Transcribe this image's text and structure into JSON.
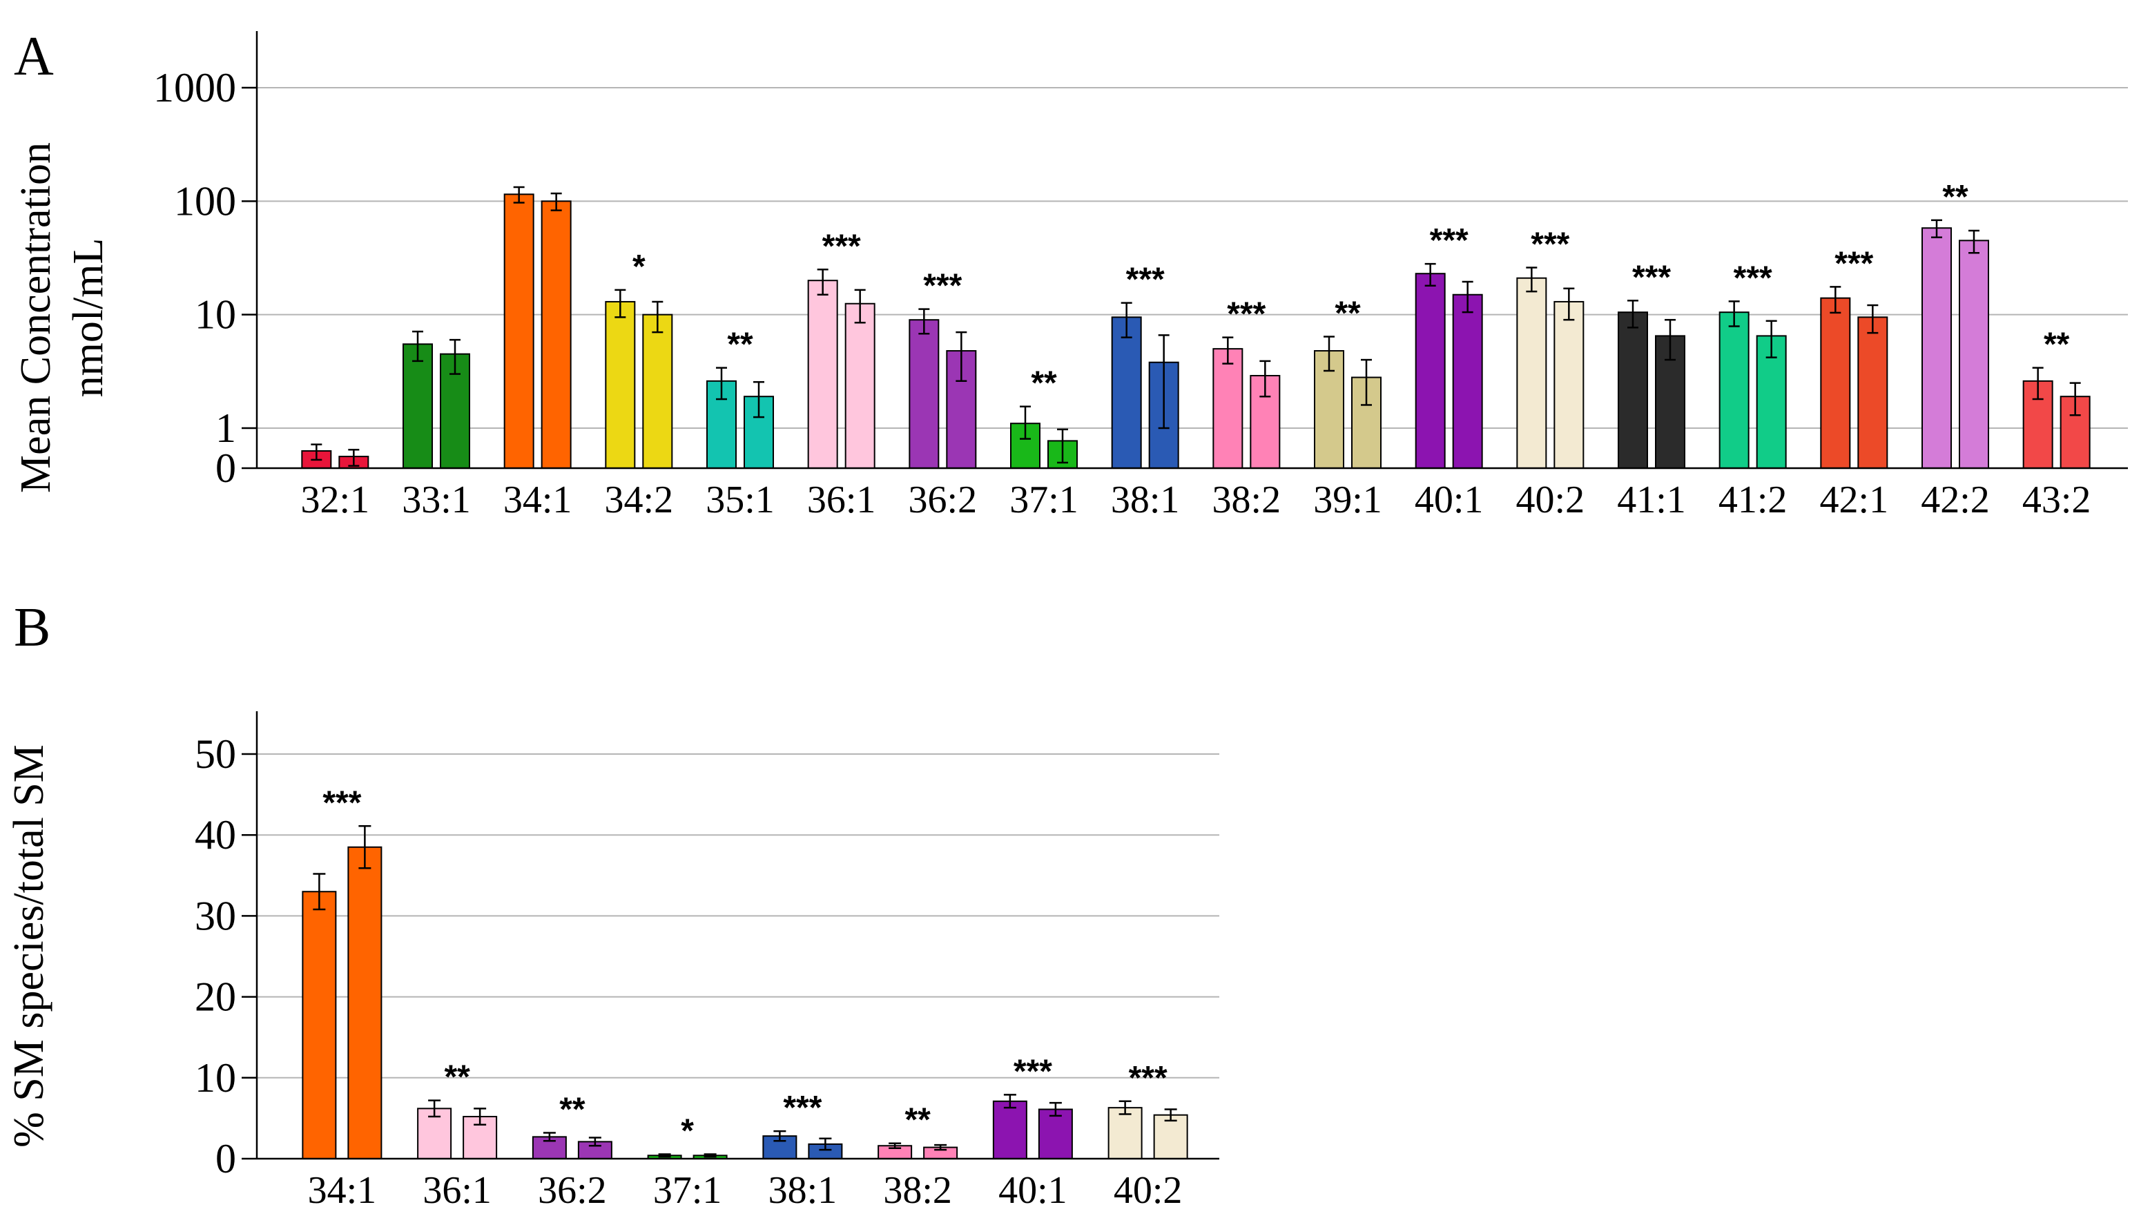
{
  "chart_data": [
    {
      "panel": "A",
      "type": "bar",
      "ylabel": "Mean Concentration",
      "ylabel2": "nmol/mL",
      "yscale": "log",
      "yticks": [
        "0",
        "1",
        "10",
        "100",
        "1000"
      ],
      "grid": true,
      "categories": [
        "32:1",
        "33:1",
        "34:1",
        "34:2",
        "35:1",
        "36:1",
        "36:2",
        "37:1",
        "38:1",
        "38:2",
        "39:1",
        "40:1",
        "40:2",
        "41:1",
        "41:2",
        "42:1",
        "42:2",
        "43:2"
      ],
      "series": [
        {
          "values": [
            0.4,
            5.5,
            115,
            13,
            2.6,
            20,
            9,
            1.1,
            9.5,
            5,
            4.8,
            23,
            21,
            10.5,
            10.5,
            14,
            58,
            2.6
          ],
          "errors": [
            0.12,
            1.6,
            18,
            3.5,
            0.8,
            5,
            2.2,
            0.45,
            3.2,
            1.3,
            1.6,
            5,
            5,
            2.8,
            2.6,
            3.6,
            10,
            0.8
          ]
        },
        {
          "values": [
            0.32,
            4.5,
            100,
            10,
            1.9,
            12.5,
            4.8,
            0.6,
            3.8,
            2.9,
            2.8,
            15,
            13,
            6.5,
            6.5,
            9.5,
            45,
            1.9
          ],
          "errors": [
            0.1,
            1.5,
            17,
            3,
            0.65,
            4,
            2.2,
            0.35,
            2.8,
            1,
            1.2,
            4.5,
            4,
            2.5,
            2.3,
            2.6,
            10,
            0.6
          ]
        }
      ],
      "colors": [
        "#e8153a",
        "#178c17",
        "#ff6400",
        "#ecd814",
        "#13c4b0",
        "#ffc6dd",
        "#9b36b4",
        "#19b819",
        "#2a5ab4",
        "#ff82b6",
        "#d4c98c",
        "#8c14b0",
        "#f3ead2",
        "#2b2b2b",
        "#11cc88",
        "#ec4a28",
        "#d47cd8",
        "#f24848"
      ],
      "annotations": [
        "",
        "",
        "",
        "*",
        "**",
        "***",
        "***",
        "**",
        "***",
        "***",
        "**",
        "***",
        "***",
        "***",
        "***",
        "***",
        "**",
        "**"
      ]
    },
    {
      "panel": "B",
      "type": "bar",
      "ylabel": "% SM species/total SM",
      "ylim": [
        0,
        50
      ],
      "yticks": [
        "0",
        "10",
        "20",
        "30",
        "40",
        "50"
      ],
      "grid": true,
      "categories": [
        "34:1",
        "36:1",
        "36:2",
        "37:1",
        "38:1",
        "38:2",
        "40:1",
        "40:2"
      ],
      "series": [
        {
          "values": [
            33,
            6.2,
            2.7,
            0.4,
            2.8,
            1.6,
            7.1,
            6.3
          ],
          "errors": [
            2.2,
            1.0,
            0.5,
            0.15,
            0.6,
            0.3,
            0.8,
            0.8
          ]
        },
        {
          "values": [
            38.5,
            5.2,
            2.1,
            0.4,
            1.8,
            1.4,
            6.1,
            5.4
          ],
          "errors": [
            2.6,
            1.0,
            0.5,
            0.15,
            0.7,
            0.3,
            0.8,
            0.7
          ]
        }
      ],
      "colors": [
        "#ff6400",
        "#ffc6dd",
        "#9b36b4",
        "#19b819",
        "#2a5ab4",
        "#ff82b6",
        "#8c14b0",
        "#f3ead2"
      ],
      "annotations": [
        "***",
        "**",
        "**",
        "*",
        "***",
        "**",
        "***",
        "***"
      ]
    }
  ]
}
